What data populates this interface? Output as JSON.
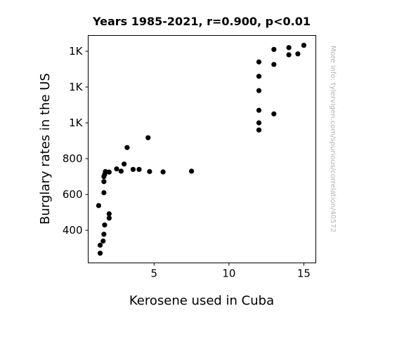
{
  "chart_data": {
    "type": "scatter",
    "title": "Years 1985-2021, r=0.900, p<0.01",
    "xlabel": "Kerosene used in Cuba",
    "ylabel": "Burglary rates in the US",
    "watermark": "More info: tylervigen.com/spurious/correlation/40572",
    "xlim": [
      0.6,
      15.8
    ],
    "ylim": [
      218,
      1488
    ],
    "grid": false,
    "marker_color": "#000000",
    "x_ticks": [
      {
        "value": 5,
        "label": "5"
      },
      {
        "value": 10,
        "label": "10"
      },
      {
        "value": 15,
        "label": "15"
      }
    ],
    "y_ticks": [
      {
        "value": 400,
        "label": "400"
      },
      {
        "value": 600,
        "label": "600"
      },
      {
        "value": 800,
        "label": "800"
      },
      {
        "value": 1000,
        "label": "1K"
      },
      {
        "value": 1200,
        "label": "1K"
      },
      {
        "value": 1400,
        "label": "1K"
      }
    ],
    "points": [
      {
        "x": 1.3,
        "y": 538
      },
      {
        "x": 1.4,
        "y": 317
      },
      {
        "x": 1.4,
        "y": 272
      },
      {
        "x": 1.6,
        "y": 340
      },
      {
        "x": 1.65,
        "y": 378
      },
      {
        "x": 1.7,
        "y": 430
      },
      {
        "x": 1.65,
        "y": 610
      },
      {
        "x": 1.65,
        "y": 672
      },
      {
        "x": 1.65,
        "y": 700
      },
      {
        "x": 1.7,
        "y": 712
      },
      {
        "x": 1.75,
        "y": 728
      },
      {
        "x": 2.0,
        "y": 725
      },
      {
        "x": 2.0,
        "y": 492
      },
      {
        "x": 2.0,
        "y": 468
      },
      {
        "x": 2.5,
        "y": 743
      },
      {
        "x": 2.8,
        "y": 730
      },
      {
        "x": 3.0,
        "y": 770
      },
      {
        "x": 3.2,
        "y": 862
      },
      {
        "x": 3.6,
        "y": 740
      },
      {
        "x": 4.0,
        "y": 740
      },
      {
        "x": 4.6,
        "y": 917
      },
      {
        "x": 4.7,
        "y": 728
      },
      {
        "x": 5.6,
        "y": 726
      },
      {
        "x": 7.5,
        "y": 730
      },
      {
        "x": 12.0,
        "y": 1000
      },
      {
        "x": 12.0,
        "y": 1070
      },
      {
        "x": 12.0,
        "y": 1180
      },
      {
        "x": 12.0,
        "y": 1260
      },
      {
        "x": 12.0,
        "y": 960
      },
      {
        "x": 12.0,
        "y": 1340
      },
      {
        "x": 13.0,
        "y": 1326
      },
      {
        "x": 13.0,
        "y": 1410
      },
      {
        "x": 13.0,
        "y": 1050
      },
      {
        "x": 14.0,
        "y": 1420
      },
      {
        "x": 14.0,
        "y": 1380
      },
      {
        "x": 14.6,
        "y": 1385
      },
      {
        "x": 15.0,
        "y": 1433
      }
    ]
  }
}
